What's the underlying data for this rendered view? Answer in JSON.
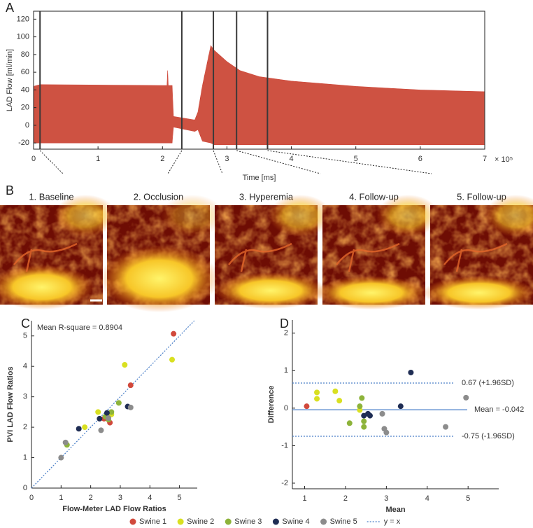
{
  "panel_labels": [
    "A",
    "B",
    "C",
    "D"
  ],
  "images": {
    "titles": [
      "1. Baseline",
      "2. Occlusion",
      "3. Hyperemia",
      "4. Follow-up",
      "5. Follow-up"
    ]
  },
  "chart_data": [
    {
      "type": "band",
      "ylabel": "LAD Flow [ml/min]",
      "xlabel": "Time [ms]",
      "x_multiplier": "× 10⁵",
      "color": "#cf4a3c",
      "x": [
        0,
        0.1,
        2.0,
        2.07,
        2.08,
        2.09,
        2.15,
        2.17,
        2.5,
        2.55,
        2.62,
        2.75,
        2.8,
        3.0,
        3.2,
        3.5,
        4.0,
        4.5,
        5.0,
        5.5,
        6.0,
        6.5,
        7.0
      ],
      "high": [
        44,
        46,
        45,
        45,
        62,
        45,
        45,
        10,
        6,
        15,
        45,
        90,
        85,
        72,
        62,
        55,
        50,
        47,
        44,
        42,
        40,
        39,
        38
      ],
      "low": [
        -20,
        -20,
        -20,
        -20,
        -20,
        -20,
        -20,
        -2,
        -7,
        -5,
        -18,
        -20,
        -22,
        -22,
        -22,
        -22,
        -22,
        -22,
        -22,
        -22,
        -22,
        -22,
        -22
      ],
      "markers": [
        0.1,
        2.3,
        2.79,
        3.15,
        3.63
      ],
      "marker_color": "#3a3a3a",
      "xlim": [
        0,
        7
      ],
      "ylim": [
        -27,
        129
      ],
      "xticks": [
        0,
        1,
        2,
        3,
        4,
        5,
        6,
        7
      ],
      "yticks": [
        -20,
        0,
        20,
        40,
        60,
        80,
        100,
        120
      ]
    },
    {
      "type": "scatter",
      "annotation": "Mean R-square = 0.8904",
      "xlabel": "Flow-Meter LAD Flow Ratios",
      "ylabel": "PVI LAD Flow Ratios",
      "series": [
        {
          "name": "Swine 1",
          "color": "#d1493c",
          "x": [
            4.8,
            3.35,
            2.45,
            2.65
          ],
          "values": [
            5.07,
            3.38,
            2.28,
            2.15
          ]
        },
        {
          "name": "Swine 2",
          "color": "#d9e021",
          "x": [
            3.15,
            4.75,
            2.25,
            1.8,
            2.7
          ],
          "values": [
            4.05,
            4.22,
            2.5,
            2.0,
            2.42
          ]
        },
        {
          "name": "Swine 3",
          "color": "#8db33a",
          "x": [
            2.95,
            2.6,
            2.7,
            1.2,
            2.5
          ],
          "values": [
            2.8,
            2.25,
            2.5,
            1.42,
            2.35
          ]
        },
        {
          "name": "Swine 4",
          "color": "#1f2d54",
          "x": [
            1.6,
            2.3,
            2.55,
            3.25
          ],
          "values": [
            1.95,
            2.28,
            2.47,
            2.68
          ]
        },
        {
          "name": "Swine 5",
          "color": "#8c8c8c",
          "x": [
            1.0,
            1.15,
            2.35,
            3.35,
            2.6
          ],
          "values": [
            1.0,
            1.5,
            1.9,
            2.65,
            2.3
          ]
        }
      ],
      "reference_line": {
        "label": "y = x",
        "color": "#4a7fc8"
      },
      "legend": "bottom",
      "xlim": [
        0,
        5.6
      ],
      "ylim": [
        0,
        5.5
      ],
      "xticks": [
        0,
        1,
        2,
        3,
        4,
        5
      ],
      "yticks": [
        0,
        1,
        2,
        3,
        4,
        5
      ]
    },
    {
      "type": "scatter",
      "xlabel": "Mean",
      "ylabel": "Difference",
      "series": [
        {
          "color": "#d1493c",
          "x": [
            1.05
          ],
          "values": [
            0.05
          ]
        },
        {
          "color": "#d9e021",
          "x": [
            1.3,
            1.3,
            1.75,
            1.85,
            2.35
          ],
          "values": [
            0.42,
            0.25,
            0.45,
            0.2,
            -0.05
          ]
        },
        {
          "color": "#8db33a",
          "x": [
            2.1,
            2.35,
            2.4,
            2.45,
            2.45
          ],
          "values": [
            -0.4,
            0.05,
            0.27,
            -0.5,
            -0.35
          ]
        },
        {
          "color": "#1f2d54",
          "x": [
            3.6,
            3.35,
            2.45,
            2.55,
            2.6
          ],
          "values": [
            0.95,
            0.05,
            -0.2,
            -0.15,
            -0.2
          ]
        },
        {
          "color": "#8c8c8c",
          "x": [
            4.95,
            4.45,
            2.9,
            2.95,
            3.0
          ],
          "values": [
            0.28,
            -0.5,
            -0.15,
            -0.55,
            -0.65
          ]
        }
      ],
      "hlines": [
        {
          "value": 0.67,
          "label": "0.67 (+1.96SD)",
          "style": "dotted"
        },
        {
          "value": -0.042,
          "label": "Mean = -0.042",
          "style": "solid"
        },
        {
          "value": -0.75,
          "label": "-0.75 (-1.96SD)",
          "style": "dotted"
        }
      ],
      "line_color": "#4a7fc8",
      "xlim": [
        0.7,
        5.75
      ],
      "ylim": [
        -2.15,
        2.35
      ],
      "xticks": [
        1,
        2,
        3,
        4,
        5
      ],
      "yticks": [
        -2,
        -1,
        0,
        1,
        2
      ]
    }
  ]
}
